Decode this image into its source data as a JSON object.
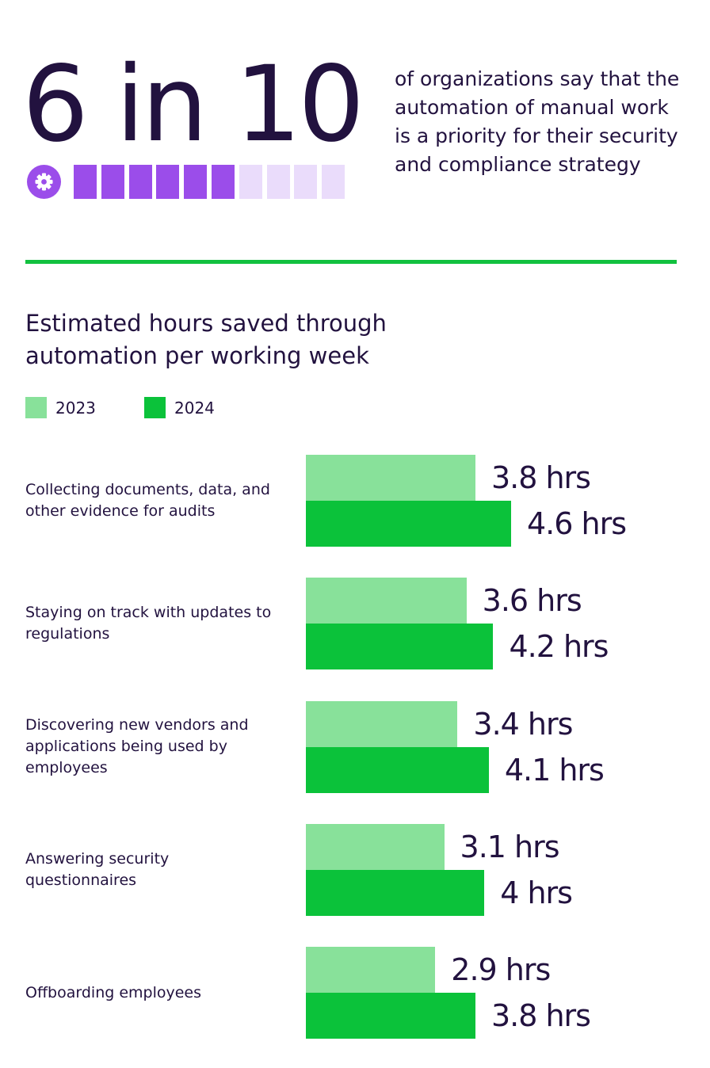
{
  "headline": {
    "value": "6 in 10",
    "description": "of organizations say that the automation of manual work is a priority for their security and compliance strategy",
    "filled": 6,
    "total": 10,
    "icon": "gear-icon"
  },
  "colors": {
    "text": "#22123f",
    "purple": "#9b4dea",
    "purple_light": "#eadcfb",
    "green_light": "#88e19a",
    "green_dark": "#0bc23a",
    "divider": "#12c13f"
  },
  "chart_data": {
    "type": "bar",
    "orientation": "horizontal",
    "title": "Estimated hours saved through automation per working week",
    "categories": [
      "Collecting documents, data, and other evidence for audits",
      "Staying on track with updates to regulations",
      "Discovering new vendors and applications being used by employees",
      "Answering security questionnaires",
      "Offboarding employees"
    ],
    "series": [
      {
        "name": "2023",
        "values": [
          3.8,
          3.6,
          3.4,
          3.1,
          2.9
        ],
        "labels": [
          "3.8 hrs",
          "3.6 hrs",
          "3.4 hrs",
          "3.1 hrs",
          "2.9 hrs"
        ],
        "color": "#88e19a"
      },
      {
        "name": "2024",
        "values": [
          4.6,
          4.2,
          4.1,
          4,
          3.8
        ],
        "labels": [
          "4.6 hrs",
          "4.2 hrs",
          "4.1 hrs",
          "4 hrs",
          "3.8 hrs"
        ],
        "color": "#0bc23a"
      }
    ],
    "legend": "top-left",
    "grid": false
  }
}
